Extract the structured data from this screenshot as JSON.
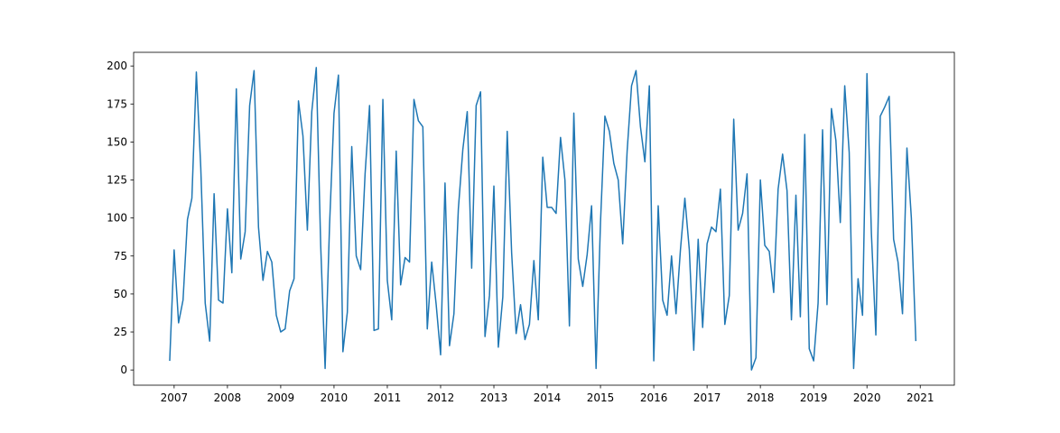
{
  "chart_data": {
    "type": "line",
    "x": [
      2006.917,
      2007,
      2007.083,
      2007.167,
      2007.25,
      2007.333,
      2007.417,
      2007.5,
      2007.583,
      2007.667,
      2007.75,
      2007.833,
      2007.917,
      2008,
      2008.083,
      2008.167,
      2008.25,
      2008.333,
      2008.417,
      2008.5,
      2008.583,
      2008.667,
      2008.75,
      2008.833,
      2008.917,
      2009,
      2009.083,
      2009.167,
      2009.25,
      2009.333,
      2009.417,
      2009.5,
      2009.583,
      2009.667,
      2009.75,
      2009.833,
      2009.917,
      2010,
      2010.083,
      2010.167,
      2010.25,
      2010.333,
      2010.417,
      2010.5,
      2010.583,
      2010.667,
      2010.75,
      2010.833,
      2010.917,
      2011,
      2011.083,
      2011.167,
      2011.25,
      2011.333,
      2011.417,
      2011.5,
      2011.583,
      2011.667,
      2011.75,
      2011.833,
      2011.917,
      2012,
      2012.083,
      2012.167,
      2012.25,
      2012.333,
      2012.417,
      2012.5,
      2012.583,
      2012.667,
      2012.75,
      2012.833,
      2012.917,
      2013,
      2013.083,
      2013.167,
      2013.25,
      2013.333,
      2013.417,
      2013.5,
      2013.583,
      2013.667,
      2013.75,
      2013.833,
      2013.917,
      2014,
      2014.083,
      2014.167,
      2014.25,
      2014.333,
      2014.417,
      2014.5,
      2014.583,
      2014.667,
      2014.75,
      2014.833,
      2014.917,
      2015,
      2015.083,
      2015.167,
      2015.25,
      2015.333,
      2015.417,
      2015.5,
      2015.583,
      2015.667,
      2015.75,
      2015.833,
      2015.917,
      2016,
      2016.083,
      2016.167,
      2016.25,
      2016.333,
      2016.417,
      2016.5,
      2016.583,
      2016.667,
      2016.75,
      2016.833,
      2016.917,
      2017,
      2017.083,
      2017.167,
      2017.25,
      2017.333,
      2017.417,
      2017.5,
      2017.583,
      2017.667,
      2017.75,
      2017.833,
      2017.917,
      2018,
      2018.083,
      2018.167,
      2018.25,
      2018.333,
      2018.417,
      2018.5,
      2018.583,
      2018.667,
      2018.75,
      2018.833,
      2018.917,
      2019,
      2019.083,
      2019.167,
      2019.25,
      2019.333,
      2019.417,
      2019.5,
      2019.583,
      2019.667,
      2019.75,
      2019.833,
      2019.917,
      2020,
      2020.083,
      2020.167,
      2020.25,
      2020.333,
      2020.417,
      2020.5,
      2020.583,
      2020.667,
      2020.75,
      2020.833,
      2020.917
    ],
    "series": [
      {
        "color": "#1f77b4",
        "values": [
          6,
          79,
          31,
          46,
          99,
          113,
          196,
          133,
          44,
          19,
          116,
          46,
          44,
          106,
          64,
          185,
          73,
          91,
          174,
          197,
          94,
          59,
          78,
          71,
          36,
          25,
          27,
          52,
          60,
          177,
          154,
          92,
          170,
          199,
          82,
          1,
          96,
          169,
          194,
          12,
          38,
          147,
          75,
          66,
          129,
          174,
          26,
          27,
          178,
          59,
          33,
          144,
          56,
          74,
          71,
          178,
          164,
          160,
          27,
          71,
          43,
          10,
          123,
          16,
          37,
          106,
          145,
          170,
          67,
          174,
          183,
          22,
          49,
          121,
          15,
          48,
          157,
          77,
          24,
          43,
          20,
          30,
          72,
          33,
          140,
          107,
          107,
          103,
          153,
          125,
          29,
          169,
          73,
          55,
          76,
          108,
          1,
          97,
          167,
          157,
          136,
          125,
          83,
          144,
          187,
          197,
          160,
          137,
          187,
          6,
          108,
          46,
          36,
          75,
          37,
          79,
          113,
          79,
          13,
          86,
          28,
          83,
          94,
          91,
          119,
          30,
          49,
          165,
          92,
          103,
          129,
          0,
          8,
          125,
          82,
          78,
          51,
          119,
          142,
          118,
          33,
          115,
          35,
          155,
          14,
          6,
          44,
          158,
          43,
          172,
          151,
          97,
          187,
          143,
          1,
          60,
          36,
          195,
          90,
          23,
          167,
          173,
          180,
          86,
          71,
          37,
          146,
          100,
          19
        ]
      }
    ],
    "xlim": [
      2006.24,
      2021.64
    ],
    "xticks": [
      2007,
      2008,
      2009,
      2010,
      2011,
      2012,
      2013,
      2014,
      2015,
      2016,
      2017,
      2018,
      2019,
      2020,
      2021
    ],
    "ylim": [
      -10,
      209
    ],
    "yticks": [
      0,
      25,
      50,
      75,
      100,
      125,
      150,
      175,
      200
    ]
  }
}
